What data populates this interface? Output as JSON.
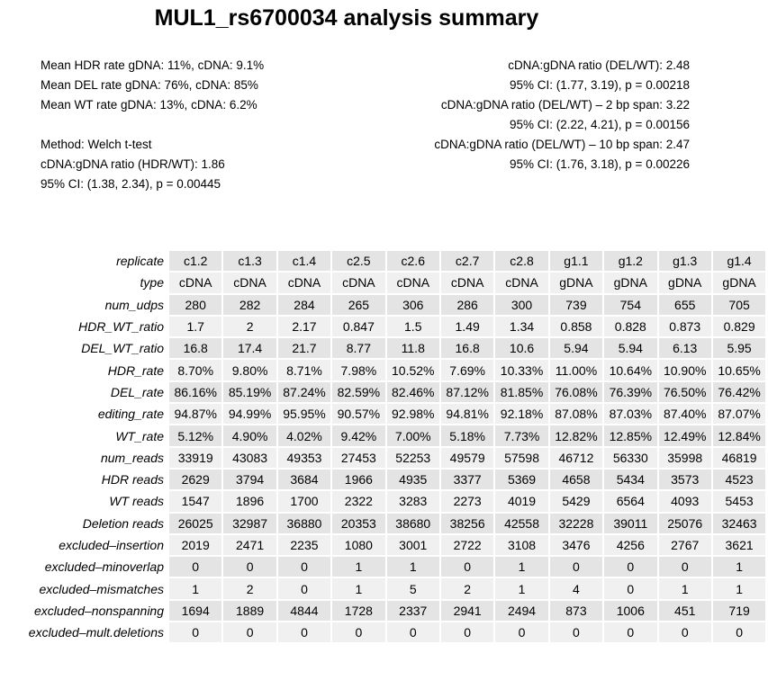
{
  "title": "MUL1_rs6700034 analysis summary",
  "stats_left": [
    "Mean HDR rate gDNA: 11%,  cDNA: 9.1%",
    "Mean DEL rate gDNA: 76%,  cDNA: 85%",
    "Mean WT rate gDNA: 13%,  cDNA: 6.2%",
    "",
    "Method: Welch t-test",
    "cDNA:gDNA ratio (HDR/WT): 1.86",
    "95% CI: (1.38, 2.34),    p = 0.00445"
  ],
  "stats_right": [
    "cDNA:gDNA ratio (DEL/WT): 2.48",
    "95% CI: (1.77, 3.19),    p = 0.00218",
    "cDNA:gDNA ratio (DEL/WT) – 2 bp span: 3.22",
    "95% CI: (2.22, 4.21),    p = 0.00156",
    "cDNA:gDNA ratio (DEL/WT) – 10 bp span: 2.47",
    "95% CI: (1.76, 3.18),    p = 0.00226"
  ],
  "table": {
    "rows": [
      {
        "label": "replicate",
        "values": [
          "c1.2",
          "c1.3",
          "c1.4",
          "c2.5",
          "c2.6",
          "c2.7",
          "c2.8",
          "g1.1",
          "g1.2",
          "g1.3",
          "g1.4"
        ]
      },
      {
        "label": "type",
        "values": [
          "cDNA",
          "cDNA",
          "cDNA",
          "cDNA",
          "cDNA",
          "cDNA",
          "cDNA",
          "gDNA",
          "gDNA",
          "gDNA",
          "gDNA"
        ]
      },
      {
        "label": "num_udps",
        "values": [
          "280",
          "282",
          "284",
          "265",
          "306",
          "286",
          "300",
          "739",
          "754",
          "655",
          "705"
        ]
      },
      {
        "label": "HDR_WT_ratio",
        "values": [
          "1.7",
          "2",
          "2.17",
          "0.847",
          "1.5",
          "1.49",
          "1.34",
          "0.858",
          "0.828",
          "0.873",
          "0.829"
        ]
      },
      {
        "label": "DEL_WT_ratio",
        "values": [
          "16.8",
          "17.4",
          "21.7",
          "8.77",
          "11.8",
          "16.8",
          "10.6",
          "5.94",
          "5.94",
          "6.13",
          "5.95"
        ]
      },
      {
        "label": "HDR_rate",
        "values": [
          "8.70%",
          "9.80%",
          "8.71%",
          "7.98%",
          "10.52%",
          "7.69%",
          "10.33%",
          "11.00%",
          "10.64%",
          "10.90%",
          "10.65%"
        ]
      },
      {
        "label": "DEL_rate",
        "values": [
          "86.16%",
          "85.19%",
          "87.24%",
          "82.59%",
          "82.46%",
          "87.12%",
          "81.85%",
          "76.08%",
          "76.39%",
          "76.50%",
          "76.42%"
        ]
      },
      {
        "label": "editing_rate",
        "values": [
          "94.87%",
          "94.99%",
          "95.95%",
          "90.57%",
          "92.98%",
          "94.81%",
          "92.18%",
          "87.08%",
          "87.03%",
          "87.40%",
          "87.07%"
        ]
      },
      {
        "label": "WT_rate",
        "values": [
          "5.12%",
          "4.90%",
          "4.02%",
          "9.42%",
          "7.00%",
          "5.18%",
          "7.73%",
          "12.82%",
          "12.85%",
          "12.49%",
          "12.84%"
        ]
      },
      {
        "label": "num_reads",
        "values": [
          "33919",
          "43083",
          "49353",
          "27453",
          "52253",
          "49579",
          "57598",
          "46712",
          "56330",
          "35998",
          "46819"
        ]
      },
      {
        "label": "HDR reads",
        "values": [
          "2629",
          "3794",
          "3684",
          "1966",
          "4935",
          "3377",
          "5369",
          "4658",
          "5434",
          "3573",
          "4523"
        ]
      },
      {
        "label": "WT reads",
        "values": [
          "1547",
          "1896",
          "1700",
          "2322",
          "3283",
          "2273",
          "4019",
          "5429",
          "6564",
          "4093",
          "5453"
        ]
      },
      {
        "label": "Deletion reads",
        "values": [
          "26025",
          "32987",
          "36880",
          "20353",
          "38680",
          "38256",
          "42558",
          "32228",
          "39011",
          "25076",
          "32463"
        ]
      },
      {
        "label": "excluded–insertion",
        "values": [
          "2019",
          "2471",
          "2235",
          "1080",
          "3001",
          "2722",
          "3108",
          "3476",
          "4256",
          "2767",
          "3621"
        ]
      },
      {
        "label": "excluded–minoverlap",
        "values": [
          "0",
          "0",
          "0",
          "1",
          "1",
          "0",
          "1",
          "0",
          "0",
          "0",
          "1"
        ]
      },
      {
        "label": "excluded–mismatches",
        "values": [
          "1",
          "2",
          "0",
          "1",
          "5",
          "2",
          "1",
          "4",
          "0",
          "1",
          "1"
        ]
      },
      {
        "label": "excluded–nonspanning",
        "values": [
          "1694",
          "1889",
          "4844",
          "1728",
          "2337",
          "2941",
          "2494",
          "873",
          "1006",
          "451",
          "719"
        ]
      },
      {
        "label": "excluded–mult.deletions",
        "values": [
          "0",
          "0",
          "0",
          "0",
          "0",
          "0",
          "0",
          "0",
          "0",
          "0",
          "0"
        ]
      }
    ]
  }
}
